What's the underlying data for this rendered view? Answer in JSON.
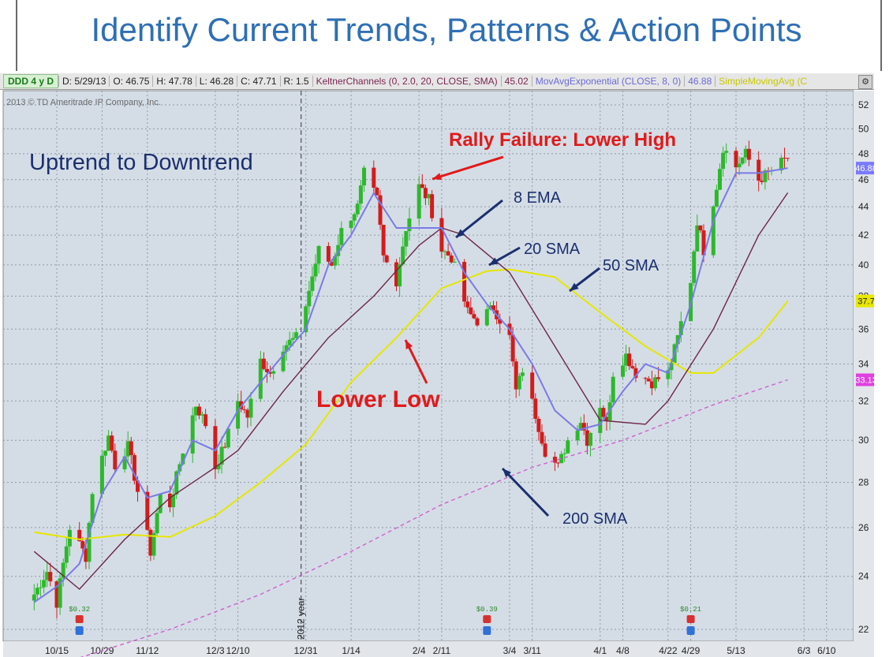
{
  "slide": {
    "title": "Identify Current Trends, Patterns & Action Points"
  },
  "header": {
    "symbol": "DDD 4 y D",
    "date": "D: 5/29/13",
    "open": "O: 46.75",
    "high": "H: 47.78",
    "low": "L: 46.28",
    "close": "C: 47.71",
    "range": "R: 1.5",
    "keltner": "KeltnerChannels (0, 2.0, 20, CLOSE, SMA)",
    "keltner_value": "45.02",
    "ema": "MovAvgExponential (CLOSE, 8, 0)",
    "ema_value": "46.88",
    "sma": "SimpleMovingAvg (C"
  },
  "copyright": "2013 © TD Ameritrade IP Company, Inc.",
  "annotations": {
    "trend": "Uptrend to Downtrend",
    "rally": "Rally Failure: Lower High",
    "ema8": "8 EMA",
    "sma20": "20 SMA",
    "sma50": "50 SMA",
    "sma200": "200 SMA",
    "lower_low": "Lower Low"
  },
  "events": [
    {
      "label": "$0.32",
      "x_label": "10/22"
    },
    {
      "label": "$0.39",
      "x_label": "2/25"
    },
    {
      "label": "$0.21",
      "x_label": "4/29"
    }
  ],
  "year_marker": "2012 year",
  "price_badges": [
    {
      "value": 46.88,
      "label": "46.88",
      "color": "#7a7aff"
    },
    {
      "value": 37.7,
      "label": "37.7",
      "color": "#e8e800"
    },
    {
      "value": 33.13,
      "label": "33.13",
      "color": "#e040e0"
    }
  ],
  "colors": {
    "plot_bg": "#d4dde6",
    "up_candle": "#2db82d",
    "down_candle": "#d21c1c",
    "ema8": "#7a7ae6",
    "sma20": "#6e2545",
    "sma50": "#e6e600",
    "sma200": "#d060d0",
    "annotation_blue": "#1b2f6e",
    "annotation_red": "#e01a1a"
  },
  "chart_data": {
    "type": "candlestick",
    "y_scale": "log",
    "ylim": [
      21.5,
      53
    ],
    "yticks": [
      22,
      24,
      26,
      28,
      30,
      32,
      34,
      36,
      38,
      40,
      42,
      44,
      46,
      48,
      50,
      52
    ],
    "x_ticks": [
      "10/15",
      "10/29",
      "11/12",
      "12/3",
      "12/10",
      "12/31",
      "1/14",
      "2/4",
      "2/11",
      "3/4",
      "3/11",
      "4/1",
      "4/8",
      "4/22",
      "4/29",
      "5/13",
      "6/3",
      "6/10"
    ],
    "anchors": [
      {
        "date": "10/8",
        "price": 23.3
      },
      {
        "date": "10/12",
        "price": 24.2
      },
      {
        "date": "10/15",
        "price": 23.0
      },
      {
        "date": "10/19",
        "price": 26.0
      },
      {
        "date": "10/24",
        "price": 24.8
      },
      {
        "date": "10/26",
        "price": 27.6
      },
      {
        "date": "10/31",
        "price": 30.2
      },
      {
        "date": "11/2",
        "price": 28.8
      },
      {
        "date": "11/6",
        "price": 29.7
      },
      {
        "date": "11/9",
        "price": 27.6
      },
      {
        "date": "11/13",
        "price": 25.0
      },
      {
        "date": "11/16",
        "price": 27.4
      },
      {
        "date": "11/19",
        "price": 27.0
      },
      {
        "date": "11/23",
        "price": 29.5
      },
      {
        "date": "11/27",
        "price": 31.8
      },
      {
        "date": "11/30",
        "price": 30.8
      },
      {
        "date": "12/3",
        "price": 28.7
      },
      {
        "date": "12/6",
        "price": 29.8
      },
      {
        "date": "12/10",
        "price": 32.0
      },
      {
        "date": "12/13",
        "price": 31.2
      },
      {
        "date": "12/17",
        "price": 34.2
      },
      {
        "date": "12/20",
        "price": 33.5
      },
      {
        "date": "12/24",
        "price": 35.0
      },
      {
        "date": "12/28",
        "price": 35.5
      },
      {
        "date": "12/31",
        "price": 37.5
      },
      {
        "date": "1/4",
        "price": 41.0
      },
      {
        "date": "1/8",
        "price": 40.0
      },
      {
        "date": "1/11",
        "price": 42.3
      },
      {
        "date": "1/16",
        "price": 44.0
      },
      {
        "date": "1/18",
        "price": 46.5
      },
      {
        "date": "1/22",
        "price": 44.5
      },
      {
        "date": "1/24",
        "price": 40.5
      },
      {
        "date": "1/28",
        "price": 39.0
      },
      {
        "date": "1/31",
        "price": 42.5
      },
      {
        "date": "2/4",
        "price": 45.5
      },
      {
        "date": "2/7",
        "price": 44.5
      },
      {
        "date": "2/11",
        "price": 41.0
      },
      {
        "date": "2/14",
        "price": 40.5
      },
      {
        "date": "2/19",
        "price": 37.0
      },
      {
        "date": "2/22",
        "price": 36.5
      },
      {
        "date": "2/27",
        "price": 37.3
      },
      {
        "date": "3/4",
        "price": 35.5
      },
      {
        "date": "3/6",
        "price": 32.5
      },
      {
        "date": "3/8",
        "price": 33.7
      },
      {
        "date": "3/12",
        "price": 31.3
      },
      {
        "date": "3/15",
        "price": 29.5
      },
      {
        "date": "3/19",
        "price": 28.7
      },
      {
        "date": "3/22",
        "price": 30.0
      },
      {
        "date": "3/26",
        "price": 31.0
      },
      {
        "date": "3/28",
        "price": 30.0
      },
      {
        "date": "4/1",
        "price": 31.8
      },
      {
        "date": "4/3",
        "price": 30.8
      },
      {
        "date": "4/5",
        "price": 33.5
      },
      {
        "date": "4/9",
        "price": 34.5
      },
      {
        "date": "4/12",
        "price": 33.5
      },
      {
        "date": "4/17",
        "price": 33.0
      },
      {
        "date": "4/22",
        "price": 33.5
      },
      {
        "date": "4/25",
        "price": 35.5
      },
      {
        "date": "4/29",
        "price": 39.0
      },
      {
        "date": "5/1",
        "price": 43.0
      },
      {
        "date": "5/3",
        "price": 41.0
      },
      {
        "date": "5/7",
        "price": 45.5
      },
      {
        "date": "5/9",
        "price": 48.5
      },
      {
        "date": "5/13",
        "price": 47.0
      },
      {
        "date": "5/16",
        "price": 48.0
      },
      {
        "date": "5/20",
        "price": 46.0
      },
      {
        "date": "5/23",
        "price": 46.5
      },
      {
        "date": "5/29",
        "price": 47.71
      }
    ],
    "ema8": [
      {
        "date": "10/8",
        "price": 23.0
      },
      {
        "date": "10/15",
        "price": 23.6
      },
      {
        "date": "10/22",
        "price": 24.5
      },
      {
        "date": "10/29",
        "price": 27.5
      },
      {
        "date": "11/5",
        "price": 29.2
      },
      {
        "date": "11/12",
        "price": 27.3
      },
      {
        "date": "11/19",
        "price": 27.6
      },
      {
        "date": "11/26",
        "price": 30.0
      },
      {
        "date": "12/3",
        "price": 29.5
      },
      {
        "date": "12/10",
        "price": 31.5
      },
      {
        "date": "12/17",
        "price": 33.0
      },
      {
        "date": "12/24",
        "price": 34.5
      },
      {
        "date": "12/31",
        "price": 36.0
      },
      {
        "date": "1/7",
        "price": 40.0
      },
      {
        "date": "1/14",
        "price": 42.0
      },
      {
        "date": "1/21",
        "price": 45.0
      },
      {
        "date": "1/28",
        "price": 42.5
      },
      {
        "date": "2/4",
        "price": 42.5
      },
      {
        "date": "2/11",
        "price": 42.5
      },
      {
        "date": "2/18",
        "price": 39.5
      },
      {
        "date": "2/25",
        "price": 37.5
      },
      {
        "date": "3/4",
        "price": 36.0
      },
      {
        "date": "3/11",
        "price": 34.0
      },
      {
        "date": "3/18",
        "price": 31.5
      },
      {
        "date": "3/25",
        "price": 30.5
      },
      {
        "date": "4/1",
        "price": 30.8
      },
      {
        "date": "4/8",
        "price": 32.5
      },
      {
        "date": "4/15",
        "price": 34.0
      },
      {
        "date": "4/22",
        "price": 33.5
      },
      {
        "date": "4/29",
        "price": 37.5
      },
      {
        "date": "5/6",
        "price": 43.0
      },
      {
        "date": "5/13",
        "price": 46.5
      },
      {
        "date": "5/20",
        "price": 46.5
      },
      {
        "date": "5/29",
        "price": 46.88
      }
    ],
    "sma20": [
      {
        "date": "10/8",
        "price": 25.0
      },
      {
        "date": "10/22",
        "price": 23.5
      },
      {
        "date": "11/5",
        "price": 25.5
      },
      {
        "date": "11/19",
        "price": 27.3
      },
      {
        "date": "12/3",
        "price": 28.7
      },
      {
        "date": "12/10",
        "price": 29.5
      },
      {
        "date": "12/24",
        "price": 32.5
      },
      {
        "date": "1/7",
        "price": 35.5
      },
      {
        "date": "1/21",
        "price": 38.0
      },
      {
        "date": "2/4",
        "price": 41.3
      },
      {
        "date": "2/11",
        "price": 42.5
      },
      {
        "date": "2/18",
        "price": 42.0
      },
      {
        "date": "3/4",
        "price": 39.5
      },
      {
        "date": "3/18",
        "price": 35.0
      },
      {
        "date": "4/1",
        "price": 31.0
      },
      {
        "date": "4/15",
        "price": 30.8
      },
      {
        "date": "4/22",
        "price": 32.0
      },
      {
        "date": "5/6",
        "price": 36.0
      },
      {
        "date": "5/20",
        "price": 42.0
      },
      {
        "date": "5/29",
        "price": 45.02
      }
    ],
    "sma50": [
      {
        "date": "10/8",
        "price": 25.8
      },
      {
        "date": "10/22",
        "price": 25.5
      },
      {
        "date": "11/5",
        "price": 25.7
      },
      {
        "date": "11/19",
        "price": 25.6
      },
      {
        "date": "12/3",
        "price": 26.5
      },
      {
        "date": "12/17",
        "price": 28.0
      },
      {
        "date": "12/31",
        "price": 29.8
      },
      {
        "date": "1/14",
        "price": 33.0
      },
      {
        "date": "1/28",
        "price": 35.5
      },
      {
        "date": "2/11",
        "price": 38.5
      },
      {
        "date": "2/25",
        "price": 39.6
      },
      {
        "date": "3/4",
        "price": 39.7
      },
      {
        "date": "3/18",
        "price": 39.2
      },
      {
        "date": "4/1",
        "price": 37.0
      },
      {
        "date": "4/15",
        "price": 35.0
      },
      {
        "date": "4/29",
        "price": 33.5
      },
      {
        "date": "5/6",
        "price": 33.5
      },
      {
        "date": "5/20",
        "price": 35.5
      },
      {
        "date": "5/29",
        "price": 37.7
      }
    ],
    "sma200": [
      {
        "date": "10/22",
        "price": 21.0
      },
      {
        "date": "11/19",
        "price": 22.0
      },
      {
        "date": "12/17",
        "price": 23.3
      },
      {
        "date": "1/14",
        "price": 25.0
      },
      {
        "date": "2/11",
        "price": 27.0
      },
      {
        "date": "3/11",
        "price": 28.7
      },
      {
        "date": "4/8",
        "price": 30.0
      },
      {
        "date": "5/6",
        "price": 31.8
      },
      {
        "date": "5/29",
        "price": 33.13
      }
    ]
  }
}
